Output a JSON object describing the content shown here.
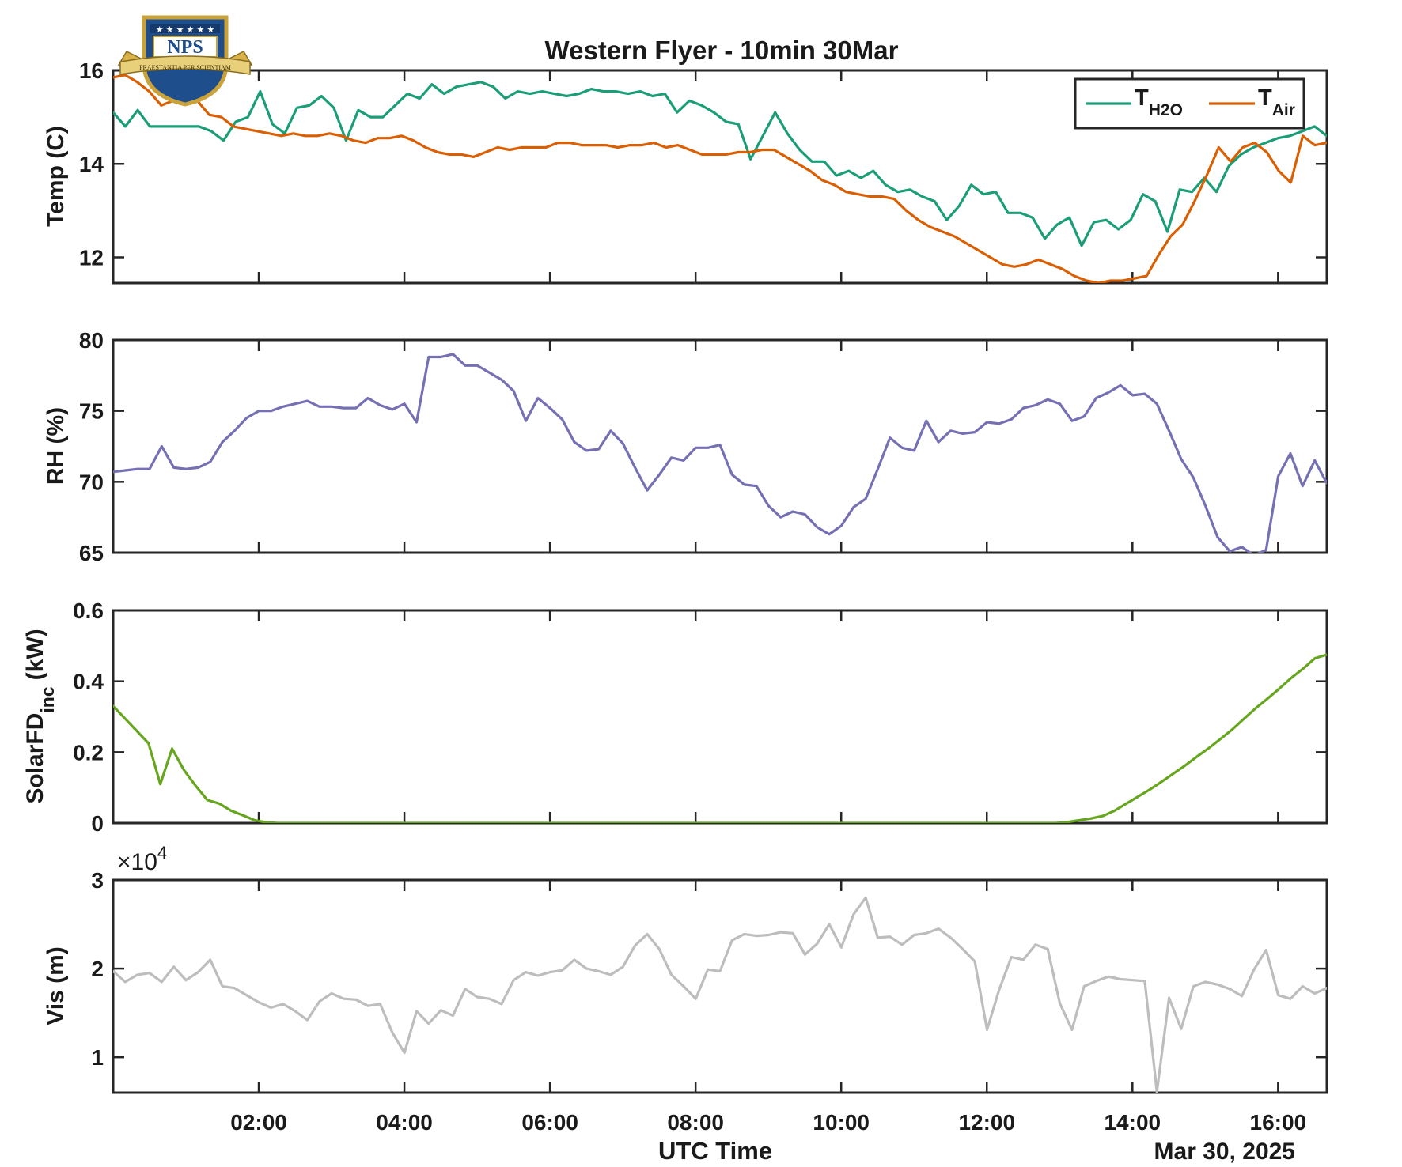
{
  "figure": {
    "title": "Western Flyer - 10min 30Mar",
    "xlabel": "UTC Time",
    "date_label": "Mar 30, 2025",
    "logo": {
      "text": "NPS",
      "motto": "PRAESTANTIA PER SCIENTIAM"
    }
  },
  "chart_data": [
    {
      "type": "line",
      "ylabel": "Temp (C)",
      "xlim": [
        0,
        16.67
      ],
      "ylim": [
        11.45,
        16.0
      ],
      "yticks": [
        12,
        14,
        16
      ],
      "xticks": [
        "02:00",
        "04:00",
        "06:00",
        "08:00",
        "10:00",
        "12:00",
        "14:00",
        "16:00"
      ],
      "legend": {
        "position": "top-right"
      },
      "series": [
        {
          "name": "T",
          "name_sub": "H2O",
          "color": "#1b9e77",
          "values": [
            15.1,
            14.8,
            15.15,
            14.8,
            14.8,
            14.8,
            14.8,
            14.8,
            14.7,
            14.5,
            14.9,
            15.0,
            15.55,
            14.85,
            14.65,
            15.2,
            15.25,
            15.45,
            15.2,
            14.5,
            15.15,
            15.0,
            15.0,
            15.25,
            15.5,
            15.4,
            15.7,
            15.5,
            15.65,
            15.7,
            15.75,
            15.65,
            15.4,
            15.55,
            15.5,
            15.55,
            15.5,
            15.45,
            15.5,
            15.6,
            15.55,
            15.55,
            15.5,
            15.55,
            15.45,
            15.5,
            15.1,
            15.35,
            15.25,
            15.1,
            14.9,
            14.85,
            14.1,
            14.6,
            15.1,
            14.65,
            14.3,
            14.05,
            14.05,
            13.75,
            13.85,
            13.7,
            13.85,
            13.55,
            13.4,
            13.45,
            13.3,
            13.2,
            12.8,
            13.1,
            13.55,
            13.35,
            13.4,
            12.95,
            12.95,
            12.85,
            12.4,
            12.7,
            12.85,
            12.25,
            12.75,
            12.8,
            12.6,
            12.8,
            13.35,
            13.2,
            12.55,
            13.45,
            13.4,
            13.7,
            13.4,
            13.95,
            14.2,
            14.35,
            14.45,
            14.55,
            14.6,
            14.7,
            14.8,
            14.6
          ]
        },
        {
          "name": "T",
          "name_sub": "Air",
          "color": "#d95f02",
          "values": [
            15.85,
            15.9,
            15.75,
            15.55,
            15.25,
            15.35,
            15.4,
            15.35,
            15.05,
            15.0,
            14.8,
            14.75,
            14.7,
            14.65,
            14.6,
            14.65,
            14.6,
            14.6,
            14.65,
            14.6,
            14.5,
            14.45,
            14.55,
            14.55,
            14.6,
            14.5,
            14.35,
            14.25,
            14.2,
            14.2,
            14.15,
            14.25,
            14.35,
            14.3,
            14.35,
            14.35,
            14.35,
            14.45,
            14.45,
            14.4,
            14.4,
            14.4,
            14.35,
            14.4,
            14.4,
            14.45,
            14.35,
            14.4,
            14.3,
            14.2,
            14.2,
            14.2,
            14.25,
            14.25,
            14.3,
            14.3,
            14.15,
            14.0,
            13.85,
            13.65,
            13.55,
            13.4,
            13.35,
            13.3,
            13.3,
            13.25,
            13.0,
            12.8,
            12.65,
            12.55,
            12.45,
            12.3,
            12.15,
            12.0,
            11.85,
            11.8,
            11.85,
            11.95,
            11.85,
            11.75,
            11.6,
            11.5,
            11.45,
            11.5,
            11.5,
            11.55,
            11.6,
            12.05,
            12.45,
            12.7,
            13.2,
            13.75,
            14.35,
            14.05,
            14.35,
            14.45,
            14.25,
            13.85,
            13.6,
            14.6,
            14.4,
            14.45
          ]
        }
      ]
    },
    {
      "type": "line",
      "ylabel": "RH (%)",
      "xlim": [
        0,
        16.67
      ],
      "ylim": [
        65,
        80
      ],
      "yticks": [
        65,
        70,
        75,
        80
      ],
      "series": [
        {
          "color": "#7570b3",
          "values": [
            70.7,
            70.8,
            70.9,
            70.9,
            72.5,
            71.0,
            70.9,
            71.0,
            71.4,
            72.8,
            73.6,
            74.5,
            75.0,
            75.0,
            75.3,
            75.5,
            75.7,
            75.3,
            75.3,
            75.2,
            75.2,
            75.9,
            75.4,
            75.1,
            75.5,
            74.2,
            78.8,
            78.8,
            79.0,
            78.2,
            78.2,
            77.7,
            77.2,
            76.4,
            74.3,
            75.9,
            75.2,
            74.4,
            72.8,
            72.2,
            72.3,
            73.6,
            72.7,
            71.0,
            69.4,
            70.5,
            71.7,
            71.5,
            72.4,
            72.4,
            72.6,
            70.5,
            69.8,
            69.7,
            68.3,
            67.5,
            67.9,
            67.7,
            66.8,
            66.3,
            66.9,
            68.2,
            68.8,
            70.9,
            73.1,
            72.4,
            72.2,
            74.3,
            72.8,
            73.6,
            73.4,
            73.5,
            74.2,
            74.1,
            74.4,
            75.2,
            75.4,
            75.8,
            75.5,
            74.3,
            74.6,
            75.9,
            76.3,
            76.8,
            76.1,
            76.2,
            75.5,
            73.6,
            71.6,
            70.3,
            68.3,
            66.1,
            65.1,
            65.4,
            64.8,
            65.2,
            70.4,
            72.0,
            69.7,
            71.5,
            69.9
          ]
        }
      ]
    },
    {
      "type": "line",
      "ylabel": "SolarFD",
      "ylabel_sub": "inc",
      "ylabel_unit": "(kW)",
      "xlim": [
        0,
        16.67
      ],
      "ylim": [
        0,
        0.6
      ],
      "yticks": [
        0,
        0.2,
        0.4,
        0.6
      ],
      "series": [
        {
          "color": "#66a61e",
          "values": [
            0.33,
            0.295,
            0.26,
            0.225,
            0.11,
            0.21,
            0.15,
            0.105,
            0.065,
            0.055,
            0.035,
            0.022,
            0.008,
            0.002,
            0.0,
            0.0,
            0.0,
            0.0,
            0.0,
            0.0,
            0.0,
            0.0,
            0.0,
            0.0,
            0.0,
            0.0,
            0.0,
            0.0,
            0.0,
            0.0,
            0.0,
            0.0,
            0.0,
            0.0,
            0.0,
            0.0,
            0.0,
            0.0,
            0.0,
            0.0,
            0.0,
            0.0,
            0.0,
            0.0,
            0.0,
            0.0,
            0.0,
            0.0,
            0.0,
            0.0,
            0.0,
            0.0,
            0.0,
            0.0,
            0.0,
            0.0,
            0.0,
            0.0,
            0.0,
            0.0,
            0.0,
            0.0,
            0.0,
            0.0,
            0.0,
            0.0,
            0.0,
            0.0,
            0.0,
            0.0,
            0.0,
            0.0,
            0.0,
            0.0,
            0.0,
            0.0,
            0.0,
            0.0,
            0.0,
            0.0,
            0.0,
            0.003,
            0.008,
            0.013,
            0.02,
            0.035,
            0.055,
            0.075,
            0.095,
            0.117,
            0.14,
            0.163,
            0.188,
            0.212,
            0.238,
            0.265,
            0.295,
            0.325,
            0.352,
            0.38,
            0.41,
            0.436,
            0.465,
            0.475
          ]
        }
      ]
    },
    {
      "type": "line",
      "ylabel": "Vis (m)",
      "exponent_label": "×10",
      "exponent_power": "4",
      "xlim": [
        0,
        16.67
      ],
      "ylim": [
        0.6,
        3.0
      ],
      "yticks": [
        1,
        2,
        3
      ],
      "series": [
        {
          "color": "#bdbdbd",
          "values": [
            1.97,
            1.85,
            1.93,
            1.95,
            1.85,
            2.02,
            1.87,
            1.96,
            2.1,
            1.8,
            1.78,
            1.7,
            1.62,
            1.56,
            1.6,
            1.52,
            1.42,
            1.63,
            1.72,
            1.66,
            1.65,
            1.58,
            1.6,
            1.28,
            1.05,
            1.52,
            1.38,
            1.53,
            1.47,
            1.77,
            1.68,
            1.66,
            1.6,
            1.87,
            1.96,
            1.92,
            1.96,
            1.98,
            2.1,
            2.0,
            1.97,
            1.93,
            2.02,
            2.26,
            2.39,
            2.22,
            1.93,
            1.8,
            1.66,
            1.99,
            1.97,
            2.32,
            2.39,
            2.37,
            2.38,
            2.41,
            2.4,
            2.16,
            2.28,
            2.5,
            2.24,
            2.61,
            2.8,
            2.35,
            2.36,
            2.27,
            2.38,
            2.4,
            2.45,
            2.35,
            2.22,
            2.08,
            1.31,
            1.76,
            2.13,
            2.1,
            2.27,
            2.22,
            1.61,
            1.31,
            1.8,
            1.86,
            1.91,
            1.88,
            1.87,
            1.86,
            0.61,
            1.67,
            1.32,
            1.8,
            1.85,
            1.82,
            1.77,
            1.69,
            1.99,
            2.21,
            1.7,
            1.66,
            1.8,
            1.72,
            1.78
          ]
        }
      ]
    }
  ]
}
